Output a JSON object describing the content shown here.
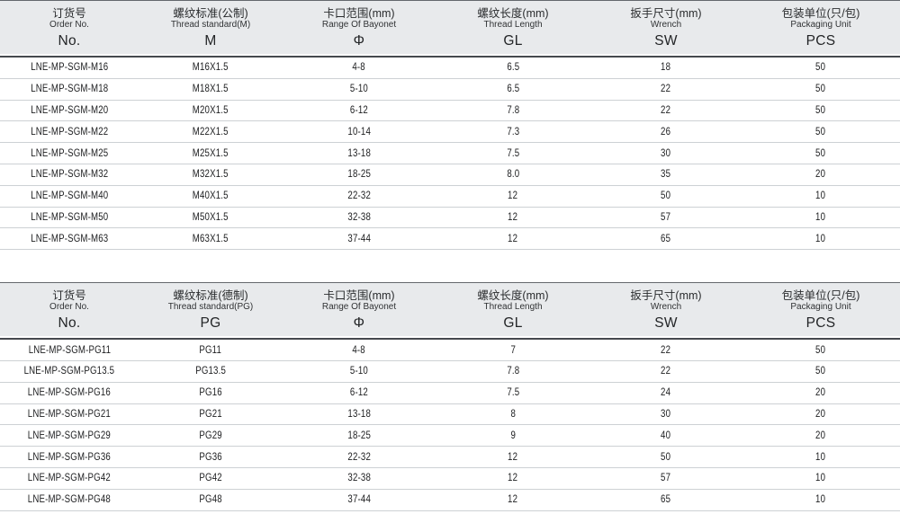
{
  "colors": {
    "header_background": "#e8eaec",
    "header_top_border": "#64686d",
    "header_bottom_rule": "#46494e",
    "row_divider": "#cdd1d4",
    "text": "#1f2022"
  },
  "tables": [
    {
      "name": "metric-thread-table",
      "columns": [
        {
          "zh": "订货号",
          "en": "Order No.",
          "symbol": "No."
        },
        {
          "zh": "螺纹标准(公制)",
          "en": "Thread standard(M)",
          "symbol": "M"
        },
        {
          "zh": "卡口范围(mm)",
          "en": "Range Of Bayonet",
          "symbol": "Φ"
        },
        {
          "zh": "螺纹长度(mm)",
          "en": "Thread Length",
          "symbol": "GL"
        },
        {
          "zh": "扳手尺寸(mm)",
          "en": "Wrench",
          "symbol": "SW"
        },
        {
          "zh": "包装单位(只/包)",
          "en": "Packaging Unit",
          "symbol": "PCS"
        }
      ],
      "rows": [
        [
          "LNE-MP-SGM-M16",
          "M16X1.5",
          "4-8",
          "6.5",
          "18",
          "50"
        ],
        [
          "LNE-MP-SGM-M18",
          "M18X1.5",
          "5-10",
          "6.5",
          "22",
          "50"
        ],
        [
          "LNE-MP-SGM-M20",
          "M20X1.5",
          "6-12",
          "7.8",
          "22",
          "50"
        ],
        [
          "LNE-MP-SGM-M22",
          "M22X1.5",
          "10-14",
          "7.3",
          "26",
          "50"
        ],
        [
          "LNE-MP-SGM-M25",
          "M25X1.5",
          "13-18",
          "7.5",
          "30",
          "50"
        ],
        [
          "LNE-MP-SGM-M32",
          "M32X1.5",
          "18-25",
          "8.0",
          "35",
          "20"
        ],
        [
          "LNE-MP-SGM-M40",
          "M40X1.5",
          "22-32",
          "12",
          "50",
          "10"
        ],
        [
          "LNE-MP-SGM-M50",
          "M50X1.5",
          "32-38",
          "12",
          "57",
          "10"
        ],
        [
          "LNE-MP-SGM-M63",
          "M63X1.5",
          "37-44",
          "12",
          "65",
          "10"
        ]
      ]
    },
    {
      "name": "pg-thread-table",
      "columns": [
        {
          "zh": "订货号",
          "en": "Order No.",
          "symbol": "No."
        },
        {
          "zh": "螺纹标准(德制)",
          "en": "Thread standard(PG)",
          "symbol": "PG"
        },
        {
          "zh": "卡口范围(mm)",
          "en": "Range Of Bayonet",
          "symbol": "Φ"
        },
        {
          "zh": "螺纹长度(mm)",
          "en": "Thread Length",
          "symbol": "GL"
        },
        {
          "zh": "扳手尺寸(mm)",
          "en": "Wrench",
          "symbol": "SW"
        },
        {
          "zh": "包装单位(只/包)",
          "en": "Packaging Unit",
          "symbol": "PCS"
        }
      ],
      "rows": [
        [
          "LNE-MP-SGM-PG11",
          "PG11",
          "4-8",
          "7",
          "22",
          "50"
        ],
        [
          "LNE-MP-SGM-PG13.5",
          "PG13.5",
          "5-10",
          "7.8",
          "22",
          "50"
        ],
        [
          "LNE-MP-SGM-PG16",
          "PG16",
          "6-12",
          "7.5",
          "24",
          "20"
        ],
        [
          "LNE-MP-SGM-PG21",
          "PG21",
          "13-18",
          "8",
          "30",
          "20"
        ],
        [
          "LNE-MP-SGM-PG29",
          "PG29",
          "18-25",
          "9",
          "40",
          "20"
        ],
        [
          "LNE-MP-SGM-PG36",
          "PG36",
          "22-32",
          "12",
          "50",
          "10"
        ],
        [
          "LNE-MP-SGM-PG42",
          "PG42",
          "32-38",
          "12",
          "57",
          "10"
        ],
        [
          "LNE-MP-SGM-PG48",
          "PG48",
          "37-44",
          "12",
          "65",
          "10"
        ]
      ]
    }
  ]
}
